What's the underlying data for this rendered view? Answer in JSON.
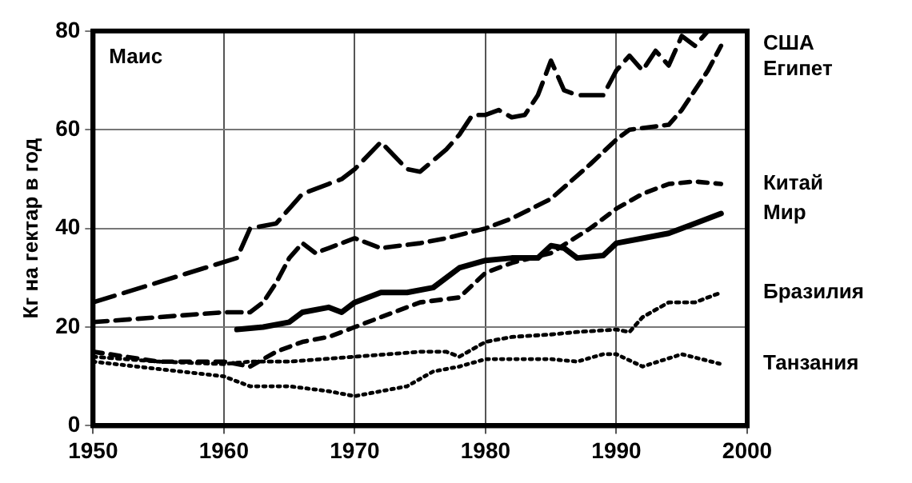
{
  "chart_data": {
    "type": "line",
    "title": "Маис",
    "ylabel": "Кг на гектар в год",
    "xlim": [
      1950,
      2000
    ],
    "xticks": [
      1950,
      1960,
      1970,
      1980,
      1990,
      2000
    ],
    "ylim": [
      0,
      80
    ],
    "yticks": [
      0,
      20,
      40,
      60,
      80
    ],
    "grid": true,
    "legend": false,
    "marker": "none",
    "series": [
      {
        "name": "США",
        "color": "#000000",
        "line_style": "dashed",
        "x": [
          1950,
          1961,
          1962,
          1964,
          1966,
          1968,
          1969,
          1970,
          1972,
          1974,
          1975,
          1977,
          1978,
          1979,
          1980,
          1981,
          1982,
          1983,
          1984,
          1985,
          1986,
          1987,
          1989,
          1990,
          1991,
          1992,
          1993,
          1994,
          1995,
          1996,
          1997
        ],
        "values": [
          25,
          34,
          40,
          41,
          47,
          49,
          50,
          52,
          57.5,
          52,
          51.5,
          56,
          59,
          63,
          63,
          64,
          62.5,
          63,
          67,
          74,
          68,
          67,
          67,
          72,
          75,
          72,
          76,
          73,
          79,
          77,
          80
        ]
      },
      {
        "name": "Египет",
        "color": "#000000",
        "line_style": "dashed",
        "x": [
          1950,
          1955,
          1960,
          1962,
          1963,
          1964,
          1965,
          1966,
          1967,
          1968,
          1970,
          1972,
          1975,
          1977,
          1980,
          1982,
          1985,
          1988,
          1990,
          1991,
          1994,
          1995,
          1996,
          1997,
          1998
        ],
        "values": [
          21,
          22,
          23,
          23,
          25,
          29,
          34,
          37,
          35,
          36,
          38,
          36,
          37,
          38,
          40,
          42,
          46,
          53,
          58,
          60,
          61,
          64,
          68,
          72,
          77
        ]
      },
      {
        "name": "Китай",
        "color": "#000000",
        "line_style": "dashed",
        "x": [
          1950,
          1955,
          1960,
          1962,
          1964,
          1966,
          1968,
          1970,
          1972,
          1975,
          1978,
          1980,
          1982,
          1985,
          1988,
          1990,
          1992,
          1994,
          1996,
          1998
        ],
        "values": [
          15,
          13,
          13,
          12,
          15,
          17,
          18,
          20,
          22,
          25,
          26,
          31,
          33,
          35,
          40,
          44,
          47,
          49,
          49.5,
          49
        ]
      },
      {
        "name": "Мир",
        "color": "#000000",
        "line_style": "solid",
        "x": [
          1961,
          1963,
          1965,
          1966,
          1968,
          1969,
          1970,
          1972,
          1974,
          1976,
          1978,
          1980,
          1982,
          1984,
          1985,
          1986,
          1987,
          1989,
          1990,
          1992,
          1994,
          1996,
          1998
        ],
        "values": [
          19.5,
          20,
          21,
          23,
          24,
          23,
          25,
          27,
          27,
          28,
          32,
          33.5,
          34,
          34,
          36.5,
          36,
          34,
          34.5,
          37,
          38,
          39,
          41,
          43
        ]
      },
      {
        "name": "Бразилия",
        "color": "#000000",
        "line_style": "dotted",
        "x": [
          1950,
          1955,
          1960,
          1962,
          1965,
          1970,
          1975,
          1977,
          1978,
          1980,
          1982,
          1985,
          1987,
          1990,
          1991,
          1992,
          1994,
          1996,
          1998
        ],
        "values": [
          14,
          13,
          12.5,
          13,
          13,
          14,
          15,
          15,
          14,
          17,
          18,
          18.5,
          19,
          19.5,
          19,
          22,
          25,
          25,
          27
        ]
      },
      {
        "name": "Танзания",
        "color": "#000000",
        "line_style": "dotted",
        "x": [
          1950,
          1955,
          1960,
          1962,
          1965,
          1968,
          1970,
          1972,
          1974,
          1976,
          1978,
          1980,
          1985,
          1987,
          1989,
          1990,
          1992,
          1995,
          1998
        ],
        "values": [
          13,
          11.5,
          10,
          8,
          8,
          7,
          6,
          7,
          8,
          11,
          12,
          13.5,
          13.5,
          13,
          14.5,
          14.5,
          12,
          14.5,
          12.5
        ]
      }
    ]
  }
}
